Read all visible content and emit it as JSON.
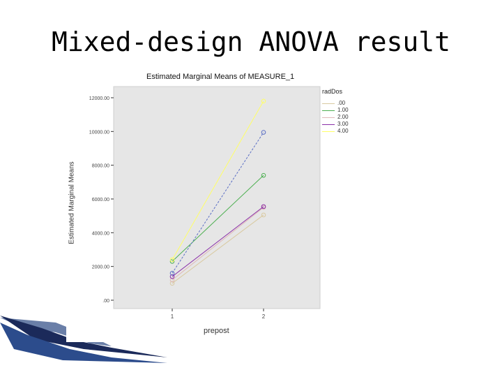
{
  "slide": {
    "title": "Mixed-design ANOVA result"
  },
  "chart_data": {
    "type": "line",
    "title": "Estimated Marginal Means of MEASURE_1",
    "xlabel": "prepost",
    "ylabel": "Estimated Marginal Means",
    "x": [
      "1",
      "2"
    ],
    "ylim": [
      0,
      13000
    ],
    "yticks": [
      0,
      2000,
      4000,
      6000,
      8000,
      10000,
      12000
    ],
    "ytick_labels": [
      ".00",
      "2000.00",
      "4000.00",
      "6000.00",
      "8000.00",
      "10000.00",
      "12000.00"
    ],
    "legend_title": "radDos",
    "legend_position": "right",
    "grid": false,
    "series": [
      {
        "name": ".00",
        "values": [
          1000,
          5050
        ],
        "color": "#d9c9a0"
      },
      {
        "name": "1.00",
        "values": [
          2300,
          7400
        ],
        "color": "#4caf50"
      },
      {
        "name": "2.00",
        "values": [
          1200,
          5500
        ],
        "color": "#e0b8b8"
      },
      {
        "name": "3.00",
        "values": [
          1400,
          5550
        ],
        "color": "#8a2fa8"
      },
      {
        "name": "4.00",
        "values": [
          2400,
          11800
        ],
        "color": "#ffff66"
      },
      {
        "name": "",
        "values": [
          1600,
          9950
        ],
        "color": "#5b6fc4"
      }
    ],
    "plot_background": "#e6e6e6"
  }
}
